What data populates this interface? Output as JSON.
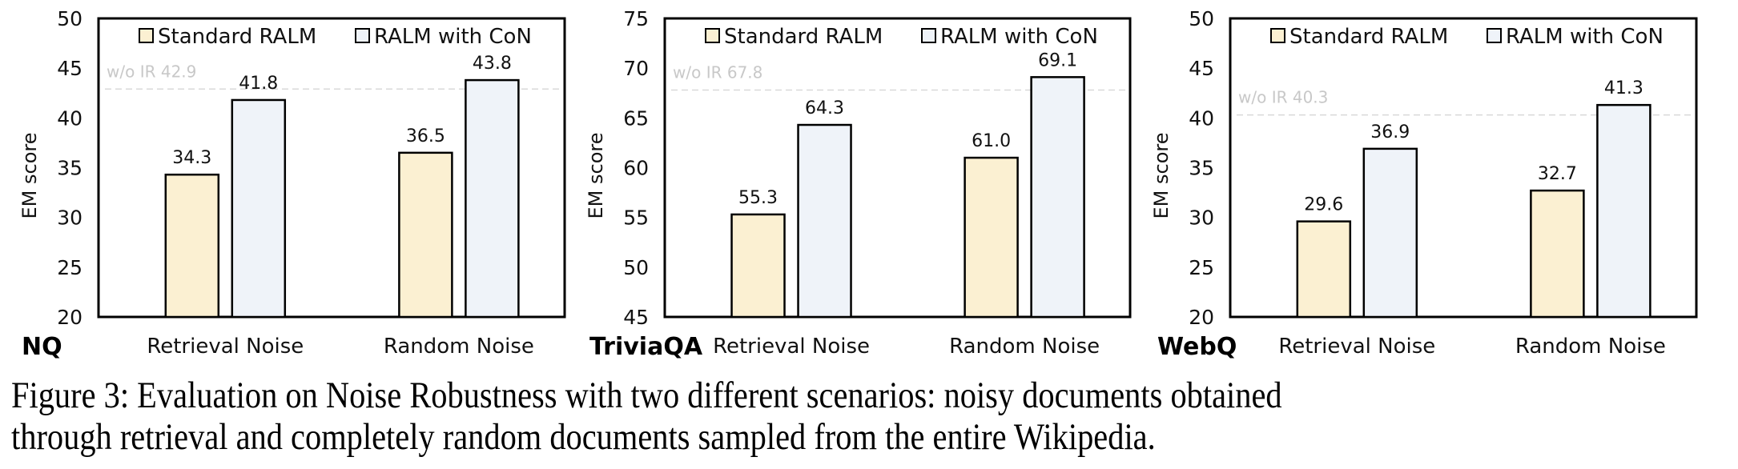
{
  "colors": {
    "standard": "#FBF0D2",
    "con": "#EFF3F9",
    "edge": "#000000",
    "reference_line": "#D9D9D9"
  },
  "caption": {
    "line1": "Figure 3: Evaluation on Noise Robustness with two different scenarios: noisy documents obtained",
    "line2": "through retrieval and completely random documents sampled from the entire Wikipedia."
  },
  "chart_data": [
    {
      "type": "bar",
      "dataset": "NQ",
      "title": "",
      "xlabel": "",
      "ylabel": "EM score",
      "ylim": [
        20,
        50
      ],
      "yticks": [
        20,
        25,
        30,
        35,
        40,
        45,
        50
      ],
      "grid": false,
      "legend": "top",
      "categories": [
        "Retrieval Noise",
        "Random Noise"
      ],
      "series": [
        {
          "name": "Standard RALM",
          "values": [
            34.3,
            36.5
          ],
          "labels": [
            "34.3",
            "36.5"
          ]
        },
        {
          "name": "RALM with CoN",
          "values": [
            41.8,
            43.8
          ],
          "labels": [
            "41.8",
            "43.8"
          ]
        }
      ],
      "reference": {
        "label": "w/o IR 42.9",
        "value": 42.9
      }
    },
    {
      "type": "bar",
      "dataset": "TriviaQA",
      "title": "",
      "xlabel": "",
      "ylabel": "EM score",
      "ylim": [
        45,
        75
      ],
      "yticks": [
        45,
        50,
        55,
        60,
        65,
        70,
        75
      ],
      "grid": false,
      "legend": "top",
      "categories": [
        "Retrieval Noise",
        "Random Noise"
      ],
      "series": [
        {
          "name": "Standard RALM",
          "values": [
            55.3,
            61.0
          ],
          "labels": [
            "55.3",
            "61.0"
          ]
        },
        {
          "name": "RALM with CoN",
          "values": [
            64.3,
            69.1
          ],
          "labels": [
            "64.3",
            "69.1"
          ]
        }
      ],
      "reference": {
        "label": "w/o IR 67.8",
        "value": 67.8
      }
    },
    {
      "type": "bar",
      "dataset": "WebQ",
      "title": "",
      "xlabel": "",
      "ylabel": "EM score",
      "ylim": [
        20,
        50
      ],
      "yticks": [
        20,
        25,
        30,
        35,
        40,
        45,
        50
      ],
      "grid": false,
      "legend": "top",
      "categories": [
        "Retrieval Noise",
        "Random Noise"
      ],
      "series": [
        {
          "name": "Standard RALM",
          "values": [
            29.6,
            32.7
          ],
          "labels": [
            "29.6",
            "32.7"
          ]
        },
        {
          "name": "RALM with CoN",
          "values": [
            36.9,
            41.3
          ],
          "labels": [
            "36.9",
            "41.3"
          ]
        }
      ],
      "reference": {
        "label": "w/o IR 40.3",
        "value": 40.3
      }
    }
  ]
}
